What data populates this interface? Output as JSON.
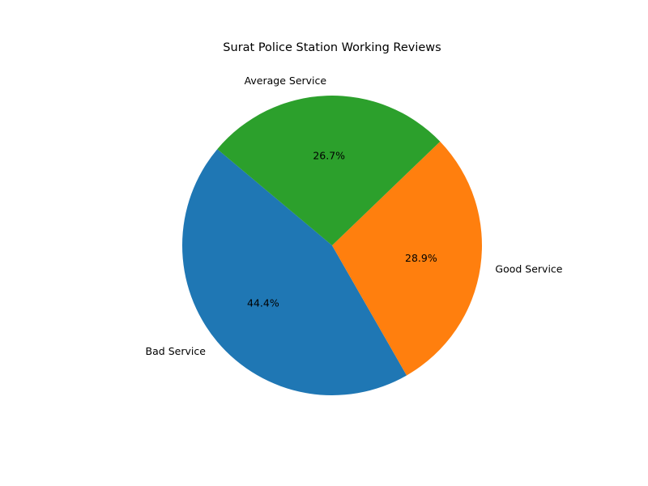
{
  "chart_data": {
    "type": "pie",
    "title": "Surat Police Station Working Reviews",
    "slices": [
      {
        "label": "Bad Service",
        "value": 44.4,
        "pct_label": "44.4%",
        "color": "#1f77b4"
      },
      {
        "label": "Good Service",
        "value": 28.9,
        "pct_label": "28.9%",
        "color": "#ff7f0e"
      },
      {
        "label": "Average Service",
        "value": 26.7,
        "pct_label": "26.7%",
        "color": "#2ca02c"
      }
    ],
    "start_angle_deg": 140,
    "direction": "counterclockwise",
    "legend": "none"
  }
}
